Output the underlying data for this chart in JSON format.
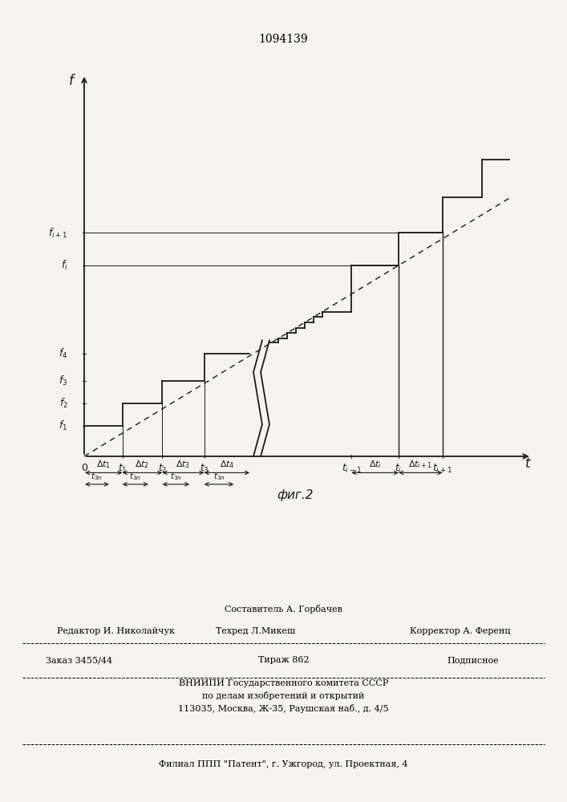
{
  "title": "1094139",
  "fig_label": "фиг.2",
  "bg_color": "#f5f3ef",
  "line_color": "#1a1a1a",
  "ylabel": "f",
  "xlabel": "t",
  "footer_sestavitel": "Составитель А. Горбачев",
  "footer_redaktor": "Редактор И. Николайчук",
  "footer_tehred": "Техред Л.Микеш",
  "footer_korrektor": "Корректор А. Ференц",
  "footer_zakaz": "Заказ 3455/44",
  "footer_tirazh": "Тираж 862",
  "footer_podpisnoe": "Подписное",
  "footer_vniip1": "ВНИИПИ Государственного комитета СССР",
  "footer_vniip2": "по делам изобретений и открытий",
  "footer_vniip3": "113035, Москва, Ж-35, Раушская наб., д. 4/5",
  "footer_filial": "Филиал ППП \"Патент\", г. Ужгород, ул. Проектная, 4"
}
